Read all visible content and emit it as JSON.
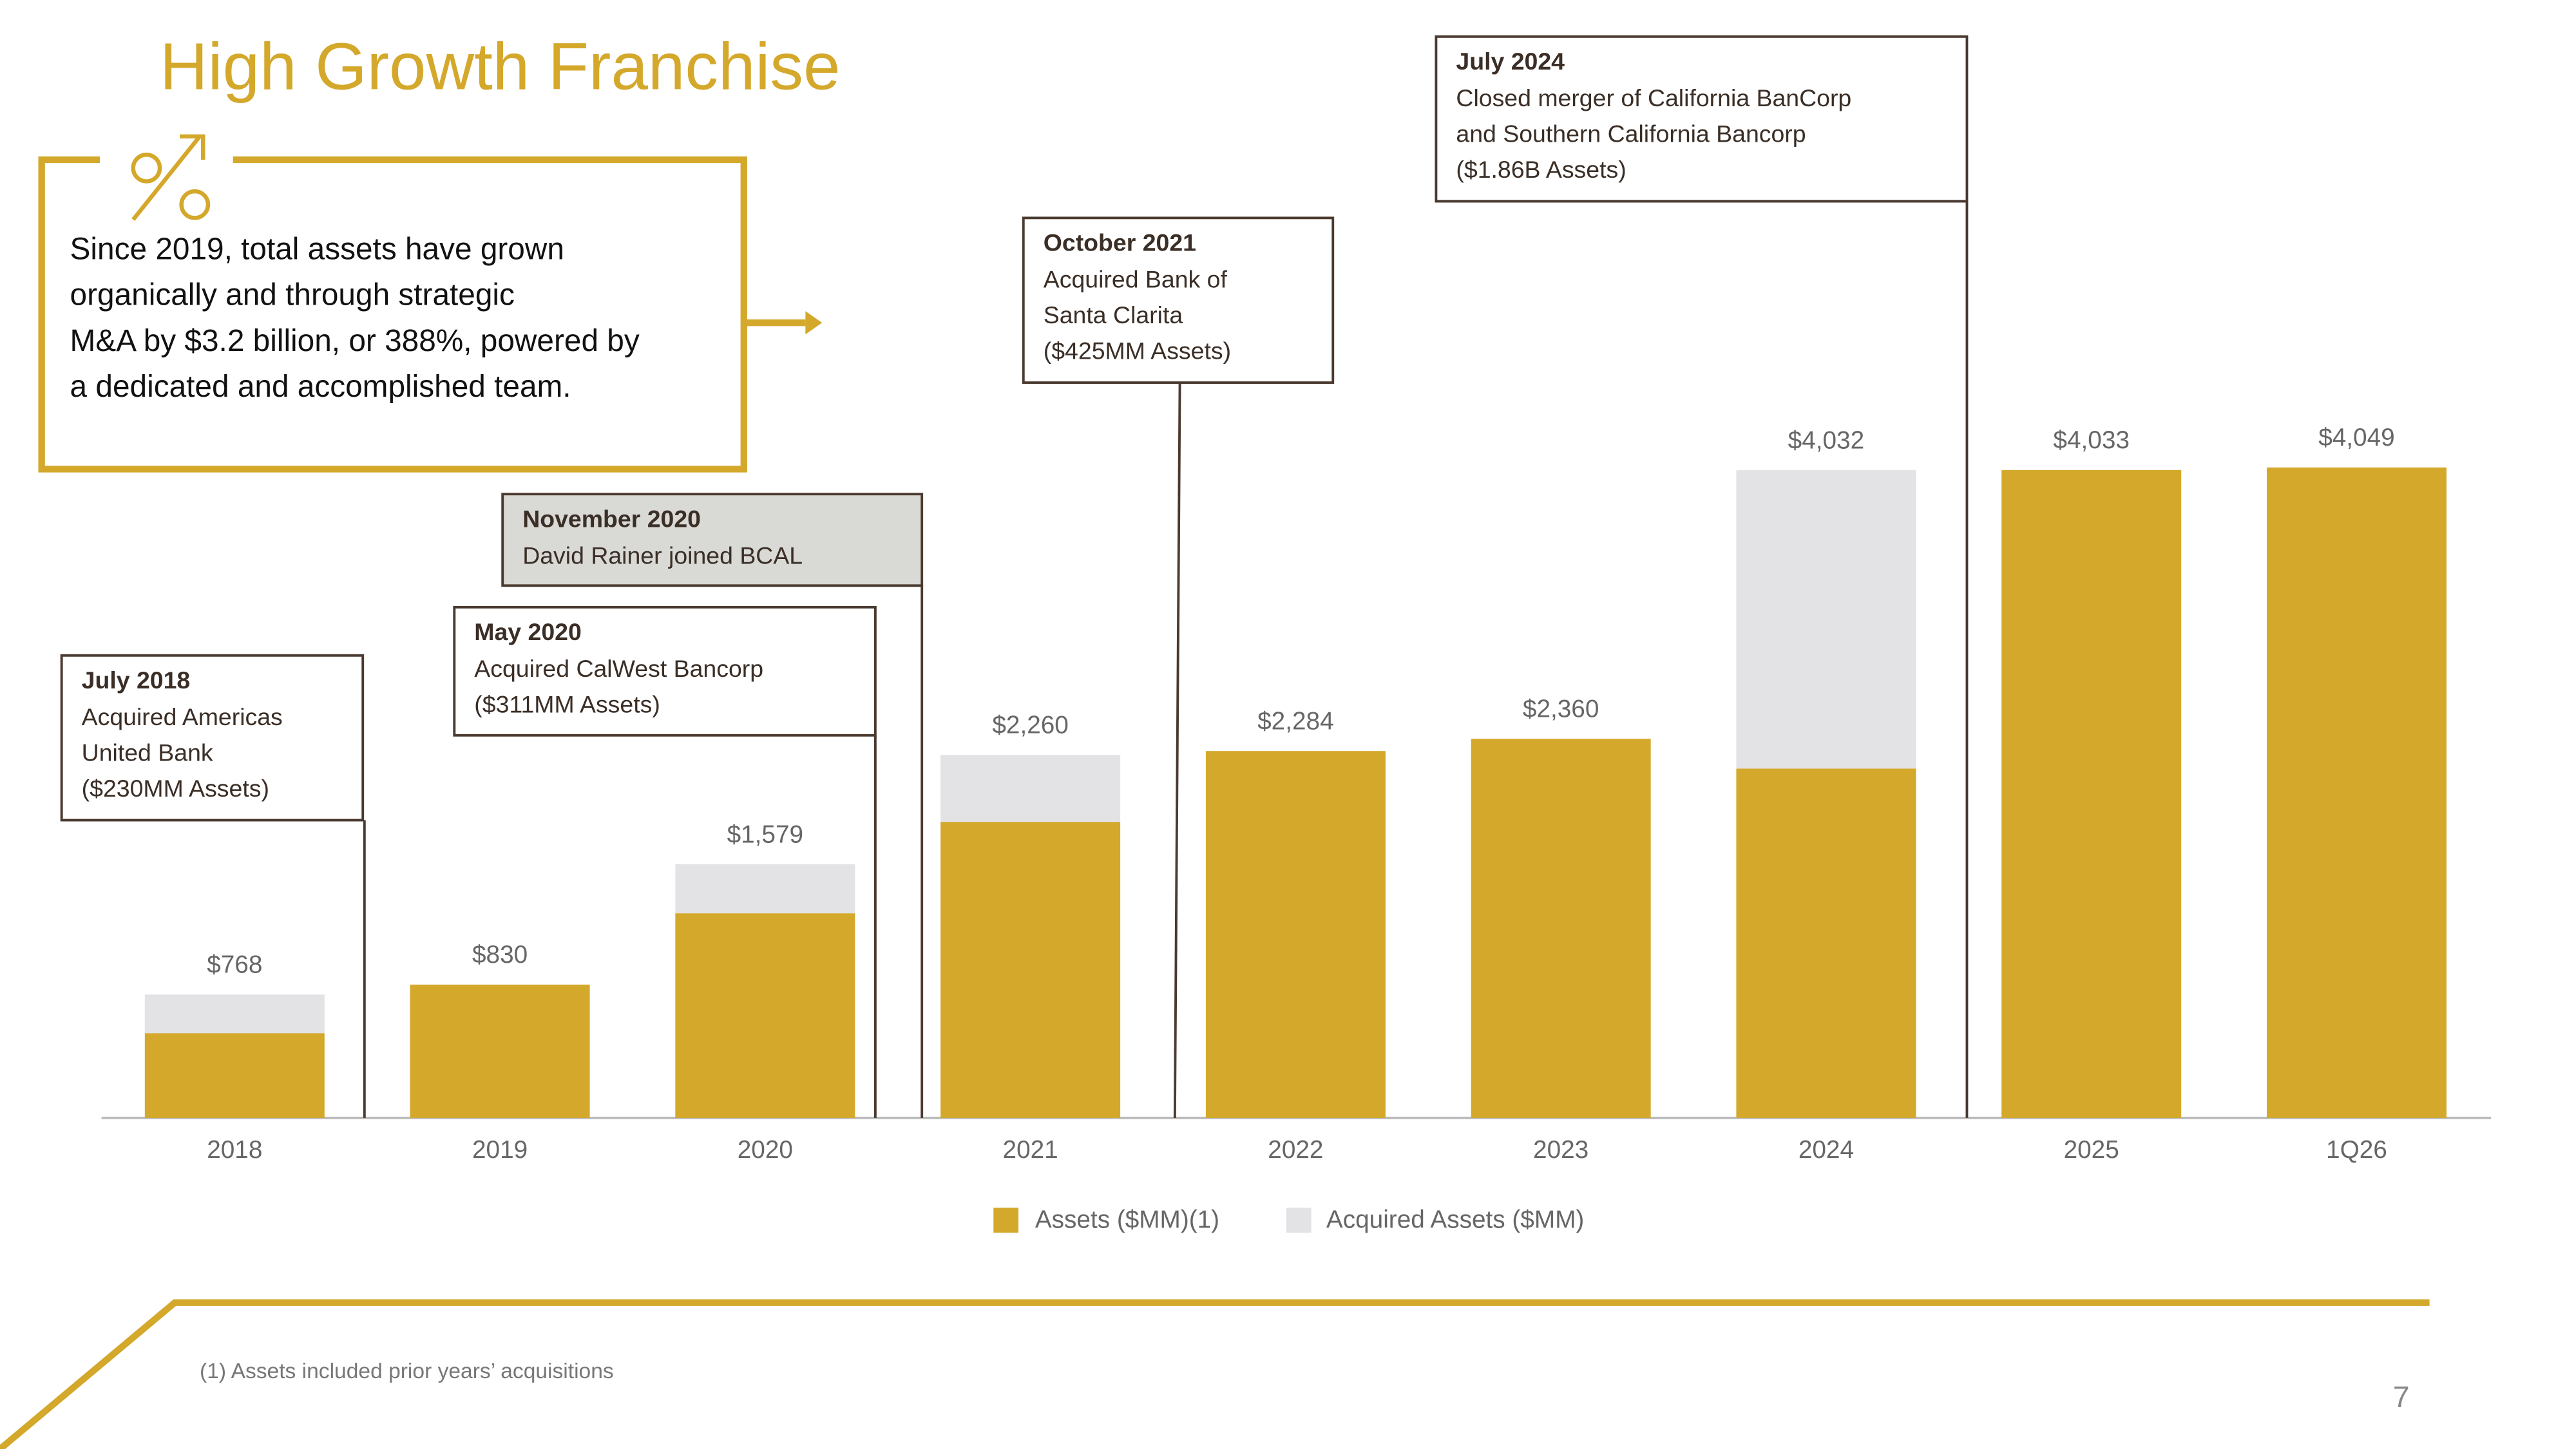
{
  "chart_data": {
    "type": "bar",
    "stacked": true,
    "title": "High Growth Franchise",
    "categories": [
      "2018",
      "2019",
      "2020",
      "2021",
      "2022",
      "2023",
      "2024",
      "2025",
      "1Q26"
    ],
    "series": [
      {
        "name": "Assets ($MM)(1)",
        "color": "#d4a82b",
        "values": [
          528,
          830,
          1274,
          1843,
          2284,
          2360,
          2175,
          4033,
          4049
        ]
      },
      {
        "name": "Acquired Assets ($MM)",
        "color": "#e3e3e6",
        "values": [
          240,
          0,
          305,
          417,
          0,
          0,
          1857,
          0,
          0
        ]
      }
    ],
    "totals": {
      "values": [
        768,
        830,
        1579,
        2260,
        2284,
        2360,
        4032,
        4033,
        4049
      ],
      "value_labels": [
        "$768",
        "$830",
        "$1,579",
        "$2,260",
        "$2,284",
        "$2,360",
        "$4,032",
        "$4,033",
        "$4,049"
      ]
    },
    "annotations": [
      {
        "title": "July 2018",
        "lines": [
          "Acquired Americas",
          "United Bank",
          "($230MM Assets)"
        ]
      },
      {
        "title": "May 2020",
        "lines": [
          "Acquired CalWest Bancorp",
          "($311MM Assets)"
        ]
      },
      {
        "title": "November 2020",
        "lines": [
          "David Rainer joined BCAL"
        ]
      },
      {
        "title": "October 2021",
        "lines": [
          "Acquired Bank of",
          "Santa Clarita",
          "($425MM Assets)"
        ]
      },
      {
        "title": "July 2024",
        "lines": [
          "Closed merger of California BanCorp",
          "and Southern California Bancorp",
          "($1.86B Assets)"
        ]
      }
    ]
  },
  "text_box": {
    "lines": [
      "Since 2019, total assets have grown",
      "organically and through strategic",
      "M&A by $3.2 billion, or 388%, powered by",
      "a dedicated and accomplished team."
    ]
  },
  "footnote": "(1)  Assets included prior years’ acquisitions",
  "page_number": "7"
}
